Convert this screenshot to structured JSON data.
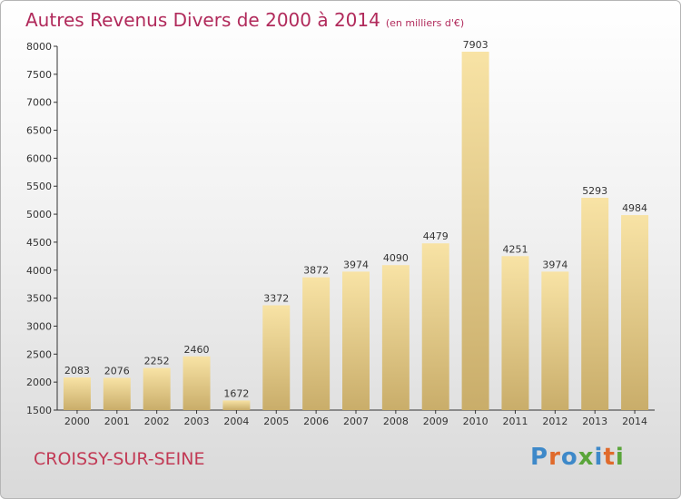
{
  "header": {
    "title": "Autres Revenus Divers de 2000 à 2014",
    "unit": "(en milliers d'€)"
  },
  "footer": {
    "place": "CROISSY-SUR-SEINE",
    "logo": "Proxiti"
  },
  "colors": {
    "title": "#b12a5b",
    "place": "#c23a55",
    "bar_light": "#f8e3a5",
    "bar_dark": "#c9ad6a",
    "logo_letters": [
      "#3e89c9",
      "#e06a2b",
      "#3e89c9",
      "#5aa53a",
      "#3e89c9",
      "#e06a2b",
      "#5aa53a"
    ]
  },
  "chart_data": {
    "type": "bar",
    "title": "Autres Revenus Divers de 2000 à 2014",
    "subtitle": "(en milliers d'€)",
    "xlabel": "",
    "ylabel": "",
    "categories": [
      "2000",
      "2001",
      "2002",
      "2003",
      "2004",
      "2005",
      "2006",
      "2007",
      "2008",
      "2009",
      "2010",
      "2011",
      "2012",
      "2013",
      "2014"
    ],
    "values": [
      2083,
      2076,
      2252,
      2460,
      1672,
      3372,
      3872,
      3974,
      4090,
      4479,
      7903,
      4251,
      3974,
      5293,
      4984
    ],
    "ylim": [
      1500,
      8000
    ],
    "yticks": [
      1500,
      2000,
      2500,
      3000,
      3500,
      4000,
      4500,
      5000,
      5500,
      6000,
      6500,
      7000,
      7500,
      8000
    ],
    "grid": false,
    "legend": "none",
    "data_labels": true
  }
}
